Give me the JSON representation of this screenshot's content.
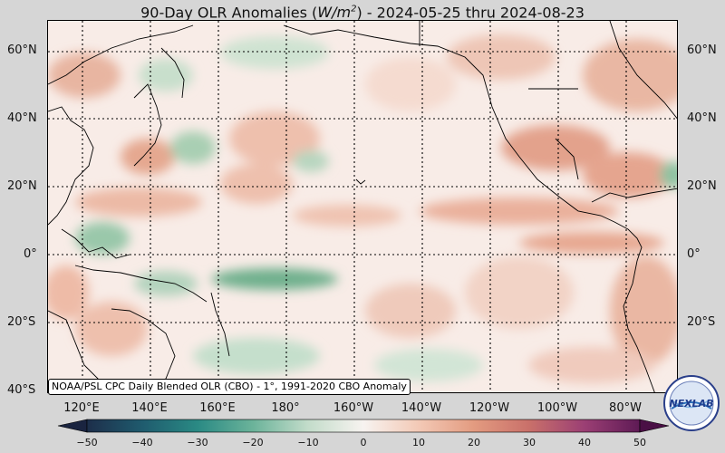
{
  "title": {
    "prefix": "90-Day OLR Anomalies (",
    "unit_main": "W/m",
    "unit_exp": "2",
    "suffix": ") - 2024-05-25 thru 2024-08-23"
  },
  "map": {
    "lat_labels": [
      "60°N",
      "40°N",
      "20°N",
      "0°",
      "20°S",
      "40°S"
    ],
    "lon_labels": [
      "120°E",
      "140°E",
      "160°E",
      "180°",
      "160°W",
      "140°W",
      "120°W",
      "100°W",
      "80°W"
    ],
    "source_text": "NOAA/PSL CPC Daily Blended OLR (CBO) - 1°, 1991-2020 CBO Anomaly",
    "extent": {
      "lon_min": 110,
      "lon_max": 295,
      "lat_min": -40,
      "lat_max": 70
    },
    "gridlines": "dotted"
  },
  "colorbar": {
    "ticks": [
      "−50",
      "−40",
      "−30",
      "−20",
      "−10",
      "0",
      "10",
      "20",
      "30",
      "40",
      "50"
    ],
    "range": [
      -50,
      50
    ],
    "colors": [
      "#1d2e4a",
      "#1f5b6e",
      "#2a8a84",
      "#6bb39a",
      "#c3dcca",
      "#f7f3f0",
      "#f3c9b6",
      "#e39b80",
      "#c9706a",
      "#9b3f74",
      "#5e1a55"
    ]
  },
  "logo": {
    "name": "noaa-physical-sciences-lab-logo",
    "text": "NEXLAB"
  }
}
